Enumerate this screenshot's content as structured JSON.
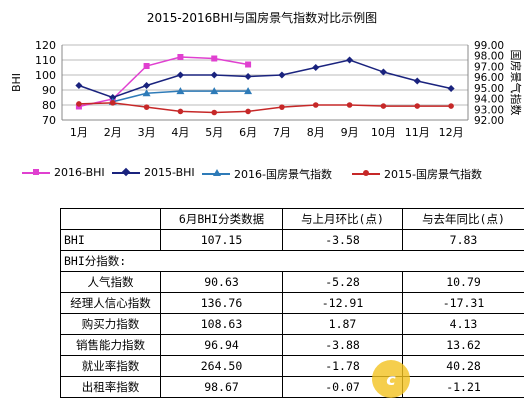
{
  "chart_data": {
    "type": "line",
    "title": "2015-2016BHI与国房景气指数对比示例图",
    "left_axis_label": "BHI",
    "right_axis_label": "国房景气指数",
    "categories": [
      "1月",
      "2月",
      "3月",
      "4月",
      "5月",
      "6月",
      "7月",
      "8月",
      "9月",
      "10月",
      "11月",
      "12月"
    ],
    "left_ylim": [
      70,
      120
    ],
    "left_ticks": [
      "70",
      "80",
      "90",
      "100",
      "110",
      "120"
    ],
    "right_ylim": [
      92.0,
      99.0
    ],
    "right_ticks": [
      "92.00",
      "93.00",
      "94.00",
      "95.00",
      "96.00",
      "97.00",
      "98.00",
      "99.00"
    ],
    "grid": "horizontal",
    "legend_position": "bottom",
    "series": [
      {
        "name": "2016-BHI",
        "axis": "left",
        "color": "#e040d0",
        "marker": "square",
        "values": [
          79,
          84,
          106,
          112,
          111,
          107,
          null,
          null,
          null,
          null,
          null,
          null
        ]
      },
      {
        "name": "2015-BHI",
        "axis": "left",
        "color": "#1a237e",
        "marker": "diamond",
        "values": [
          93,
          85,
          93,
          100,
          100,
          99,
          100,
          105,
          110,
          102,
          96,
          91
        ]
      },
      {
        "name": "2016-国房景气指数",
        "axis": "right",
        "color": "#2e7bb8",
        "marker": "triangle",
        "values": [
          null,
          93.7,
          94.5,
          94.7,
          94.7,
          94.7,
          null,
          null,
          null,
          null,
          null,
          null
        ]
      },
      {
        "name": "2015-国房景气指数",
        "axis": "right",
        "color": "#c62828",
        "marker": "circle",
        "values": [
          93.5,
          93.6,
          93.2,
          92.8,
          92.7,
          92.8,
          93.2,
          93.4,
          93.4,
          93.3,
          93.3,
          93.3
        ]
      }
    ]
  },
  "table": {
    "headers": [
      "",
      "6月BHI分类数据",
      "与上月环比(点)",
      "与去年同比(点)"
    ],
    "rows": [
      {
        "label": "BHI",
        "values": [
          "107.15",
          "-3.58",
          "7.83"
        ],
        "type": "main"
      },
      {
        "label": "BHI分指数:",
        "values": [],
        "type": "section"
      },
      {
        "label": "人气指数",
        "values": [
          "90.63",
          "-5.28",
          "10.79"
        ],
        "type": "sub"
      },
      {
        "label": "经理人信心指数",
        "values": [
          "136.76",
          "-12.91",
          "-17.31"
        ],
        "type": "sub"
      },
      {
        "label": "购买力指数",
        "values": [
          "108.63",
          "1.87",
          "4.13"
        ],
        "type": "sub"
      },
      {
        "label": "销售能力指数",
        "values": [
          "96.94",
          "-3.88",
          "13.62"
        ],
        "type": "sub"
      },
      {
        "label": "就业率指数",
        "values": [
          "264.50",
          "-1.78",
          "40.28"
        ],
        "type": "sub"
      },
      {
        "label": "出租率指数",
        "values": [
          "98.67",
          "-0.07",
          "-1.21"
        ],
        "type": "sub"
      }
    ]
  },
  "watermark": {
    "text": "c"
  }
}
